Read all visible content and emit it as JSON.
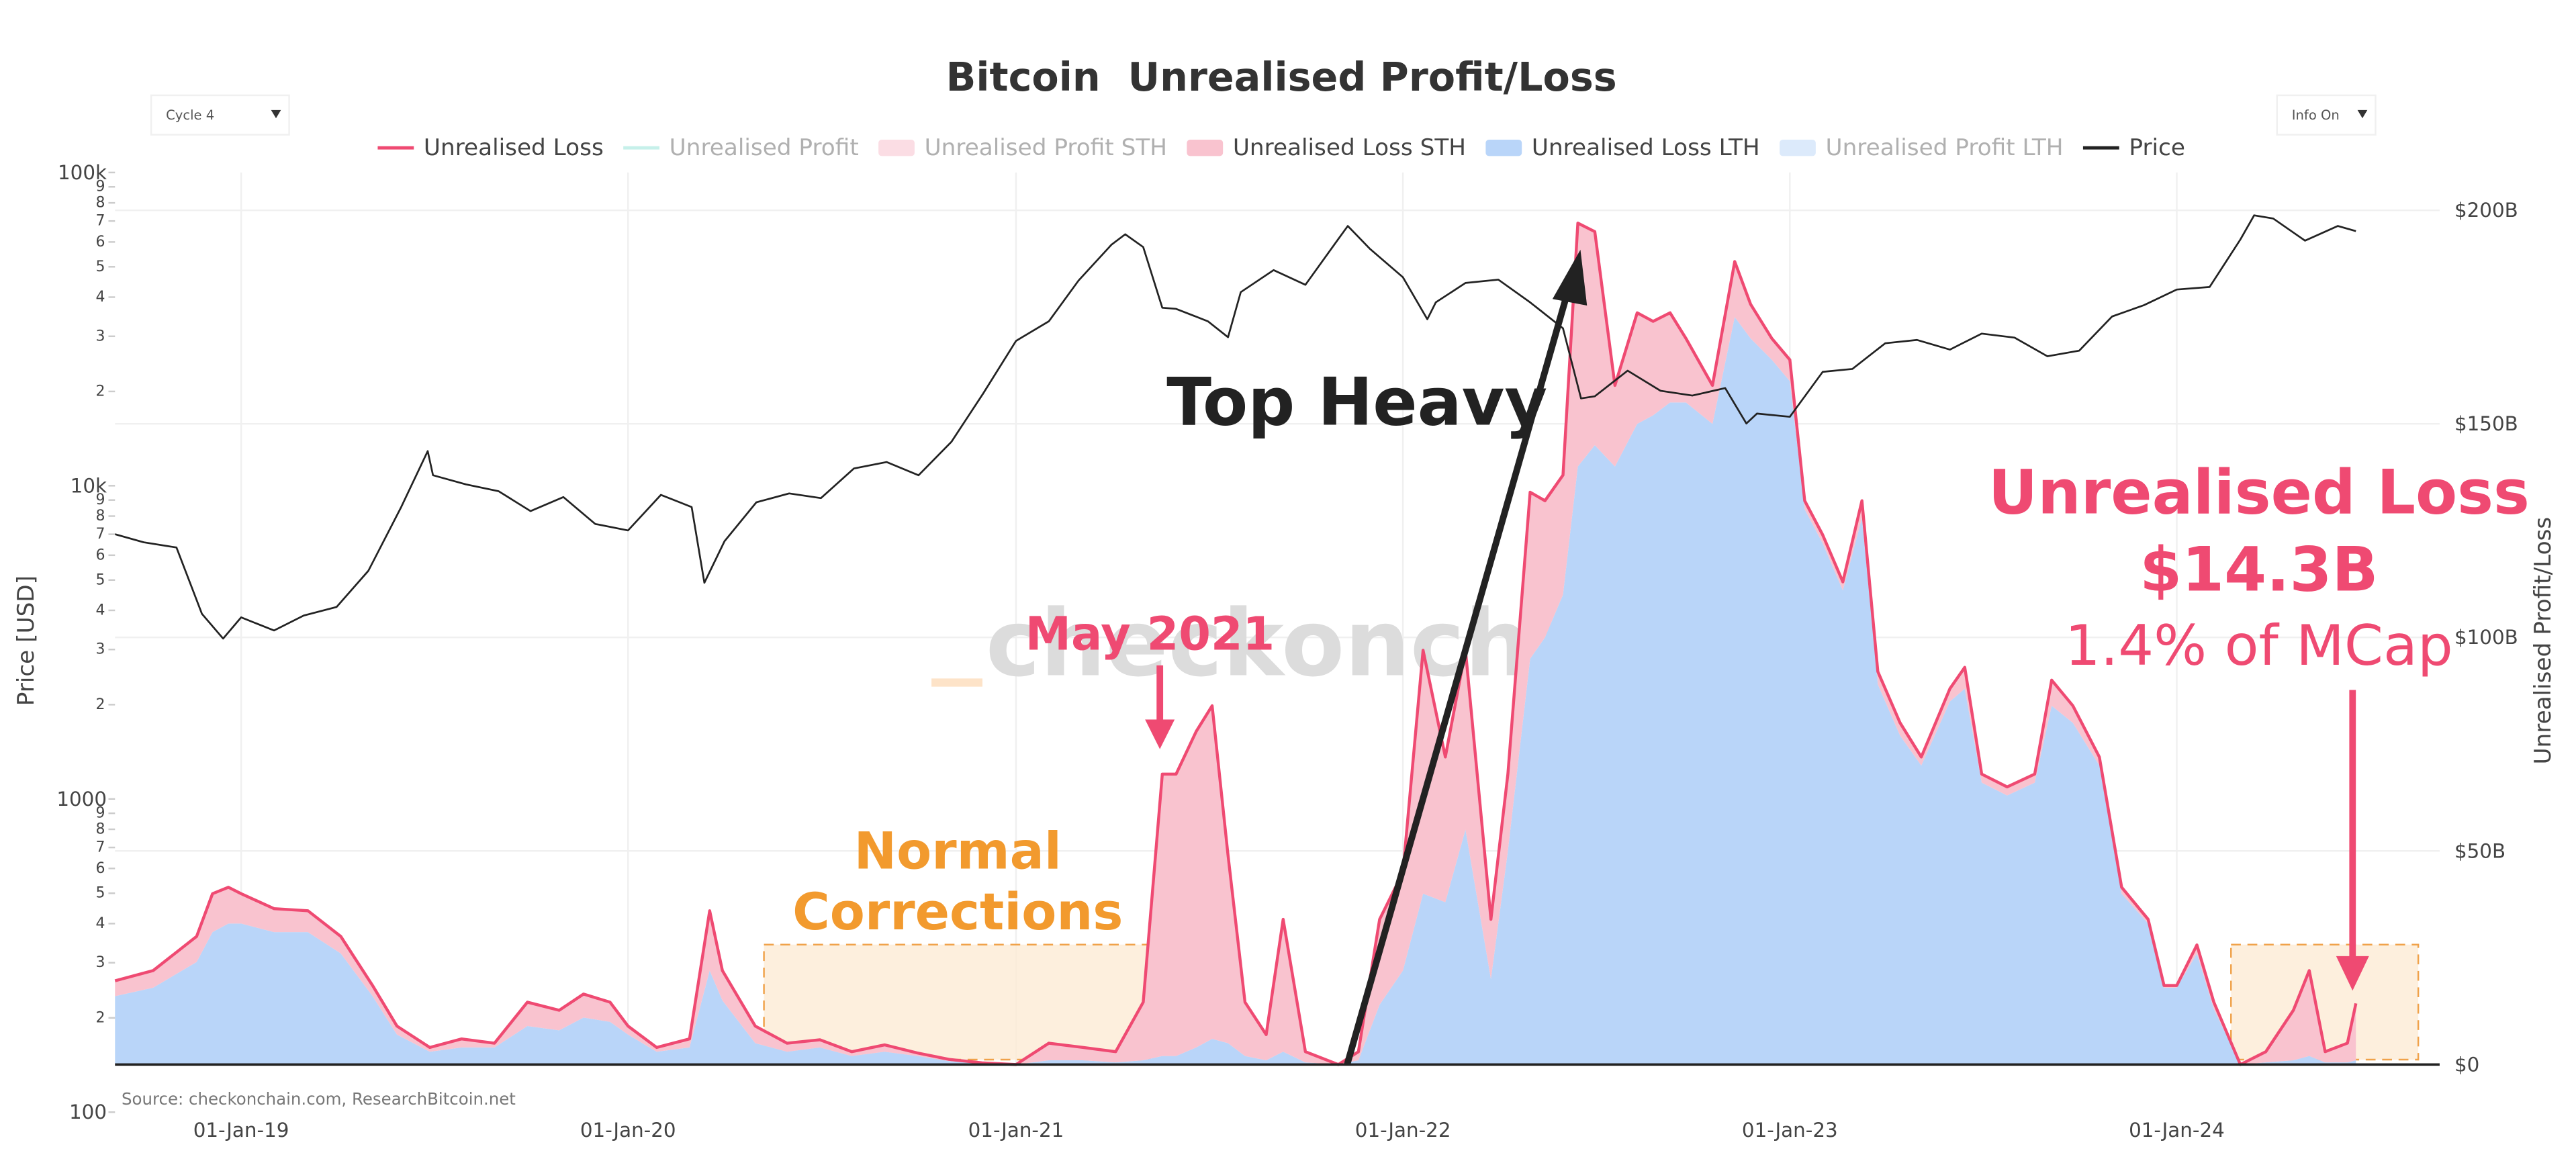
{
  "chart_data": {
    "type": "area",
    "title": "Bitcoin  Unrealised Profit/Loss",
    "controls": {
      "cycle": "Cycle 4",
      "info": "Info On"
    },
    "ylabel": "Price [USD]",
    "y2label": "Unrealised Profit/Loss",
    "source": "Source: checkonchain.com, ResearchBitcoin.net",
    "watermark": "checkonchain",
    "annotations": {
      "top_heavy": "Top Heavy",
      "may_2021": "May 2021",
      "normal_corrections": [
        "Normal",
        "Corrections"
      ],
      "loss_title": "Unrealised Loss",
      "loss_value": "$14.3B",
      "loss_share": "1.4% of MCap"
    },
    "log_y": true,
    "grid": true,
    "legend": "top",
    "xlim": [
      "2018-09-04",
      "2024-09-05"
    ],
    "xticks": [
      {
        "value": "2019-01-01",
        "label": "01-Jan-19"
      },
      {
        "value": "2020-01-01",
        "label": "01-Jan-20"
      },
      {
        "value": "2021-01-01",
        "label": "01-Jan-21"
      },
      {
        "value": "2022-01-01",
        "label": "01-Jan-22"
      },
      {
        "value": "2023-01-01",
        "label": "01-Jan-23"
      },
      {
        "value": "2024-01-01",
        "label": "01-Jan-24"
      }
    ],
    "ylim": [
      100,
      100000
    ],
    "yticks": [
      100,
      {
        "value": 200,
        "label": "2"
      },
      {
        "value": 300,
        "label": "3"
      },
      {
        "value": 400,
        "label": "4"
      },
      {
        "value": 500,
        "label": "5"
      },
      {
        "value": 600,
        "label": "6"
      },
      {
        "value": 700,
        "label": "7"
      },
      {
        "value": 800,
        "label": "8"
      },
      {
        "value": 900,
        "label": "9"
      },
      1000,
      {
        "value": 2000,
        "label": "2"
      },
      {
        "value": 3000,
        "label": "3"
      },
      {
        "value": 4000,
        "label": "4"
      },
      {
        "value": 5000,
        "label": "5"
      },
      {
        "value": 6000,
        "label": "6"
      },
      {
        "value": 7000,
        "label": "7"
      },
      {
        "value": 8000,
        "label": "8"
      },
      {
        "value": 9000,
        "label": "9"
      },
      {
        "value": 10000,
        "label": "10k"
      },
      {
        "value": 20000,
        "label": "2"
      },
      {
        "value": 30000,
        "label": "3"
      },
      {
        "value": 40000,
        "label": "4"
      },
      {
        "value": 50000,
        "label": "5"
      },
      {
        "value": 60000,
        "label": "6"
      },
      {
        "value": 70000,
        "label": "7"
      },
      {
        "value": 80000,
        "label": "8"
      },
      {
        "value": 90000,
        "label": "9"
      },
      {
        "value": 100000,
        "label": "100k"
      }
    ],
    "y2lim": [
      0,
      200
    ],
    "y2ticks": [
      {
        "value": 0,
        "label": "$0"
      },
      {
        "value": 50,
        "label": "$50B"
      },
      {
        "value": 100,
        "label": "$100B"
      },
      {
        "value": 150,
        "label": "$150B"
      },
      {
        "value": 200,
        "label": "$200B"
      }
    ],
    "x": [
      "2018-09-04",
      "2018-10-10",
      "2018-11-20",
      "2018-12-05",
      "2018-12-20",
      "2019-01-01",
      "2019-02-01",
      "2019-03-05",
      "2019-04-05",
      "2019-05-05",
      "2019-05-28",
      "2019-06-28",
      "2019-07-28",
      "2019-08-28",
      "2019-09-28",
      "2019-10-28",
      "2019-11-20",
      "2019-12-15",
      "2020-01-01",
      "2020-01-28",
      "2020-02-28",
      "2020-03-18",
      "2020-03-30",
      "2020-04-30",
      "2020-05-30",
      "2020-06-30",
      "2020-07-30",
      "2020-08-30",
      "2020-09-30",
      "2020-10-30",
      "2020-11-30",
      "2021-01-01",
      "2021-02-01",
      "2021-03-05",
      "2021-04-05",
      "2021-05-01",
      "2021-05-19",
      "2021-06-01",
      "2021-06-20",
      "2021-07-05",
      "2021-07-20",
      "2021-08-05",
      "2021-08-25",
      "2021-09-10",
      "2021-10-01",
      "2021-11-01",
      "2021-11-20",
      "2021-12-10",
      "2022-01-01",
      "2022-01-20",
      "2022-02-10",
      "2022-03-01",
      "2022-03-25",
      "2022-04-10",
      "2022-05-01",
      "2022-05-15",
      "2022-06-01",
      "2022-06-15",
      "2022-07-01",
      "2022-07-20",
      "2022-08-10",
      "2022-08-25",
      "2022-09-10",
      "2022-09-25",
      "2022-10-20",
      "2022-11-10",
      "2022-11-25",
      "2022-12-15",
      "2023-01-01",
      "2023-01-15",
      "2023-02-01",
      "2023-02-20",
      "2023-03-10",
      "2023-03-25",
      "2023-04-15",
      "2023-05-05",
      "2023-06-01",
      "2023-06-15",
      "2023-07-01",
      "2023-07-25",
      "2023-08-20",
      "2023-09-05",
      "2023-09-25",
      "2023-10-20",
      "2023-11-10",
      "2023-12-05",
      "2023-12-20",
      "2024-01-01",
      "2024-01-20",
      "2024-02-05",
      "2024-03-01",
      "2024-03-25",
      "2024-04-20",
      "2024-05-05",
      "2024-05-20",
      "2024-06-10",
      "2024-06-18"
    ],
    "series": [
      {
        "name": "Unrealised Loss",
        "color": "#ef4a72",
        "kind": "line",
        "axis": "y2",
        "values": [
          19.6,
          22,
          30,
          40,
          41.5,
          40,
          36.5,
          36,
          30,
          18.5,
          9,
          4,
          6,
          5,
          14.6,
          12.7,
          16.5,
          14.6,
          9,
          4,
          6,
          36,
          22,
          9,
          5,
          5.8,
          3,
          4.6,
          2.7,
          1.2,
          0.4,
          0,
          5,
          4,
          3,
          14.6,
          68,
          68,
          78,
          84,
          49,
          14.6,
          7,
          34,
          3,
          0,
          3,
          34,
          45,
          97,
          72,
          97,
          34,
          68,
          134,
          132,
          138,
          197,
          195,
          159,
          176,
          174,
          176,
          170,
          159,
          188,
          178,
          170,
          165,
          132,
          124,
          113,
          132,
          92,
          80,
          72,
          88,
          93,
          68,
          65,
          68,
          90,
          84,
          72,
          41.5,
          34,
          18.5,
          18.5,
          28,
          14.6,
          0,
          3,
          12.7,
          22,
          3,
          5,
          14.3
        ]
      },
      {
        "name": "Unrealised Profit",
        "color": "#8fe3d6",
        "kind": "line",
        "visible": false
      },
      {
        "name": "Unrealised Profit STH",
        "color": "#f9c6d2",
        "kind": "area",
        "visible": false
      },
      {
        "name": "Unrealised Loss STH",
        "color": "#f9c3cf",
        "kind": "area",
        "axis": "y2",
        "stack_level": 1,
        "values": [
          3.6,
          4,
          6,
          9,
          8.5,
          7,
          5.5,
          5,
          4,
          2.5,
          2,
          1,
          2,
          1,
          5.6,
          4.7,
          5.5,
          4.6,
          2,
          1,
          2,
          14,
          7,
          4,
          2,
          1.8,
          1,
          1.6,
          0.7,
          0.4,
          0.2,
          0,
          4,
          3,
          2.5,
          13.6,
          66,
          66,
          74,
          78,
          44,
          12.6,
          6,
          31,
          2.5,
          0,
          2,
          20,
          23,
          57,
          34,
          42,
          14,
          18,
          39,
          32,
          28,
          57,
          50,
          19,
          26,
          22,
          21,
          15,
          9,
          13,
          8,
          5,
          5,
          2,
          2,
          2,
          4,
          3,
          3,
          2,
          3,
          5,
          2,
          2,
          2,
          6,
          4,
          2,
          1.5,
          1,
          0.5,
          0.5,
          2,
          1.6,
          0,
          2.5,
          11.7,
          20,
          2.5,
          4.5,
          13.3
        ]
      },
      {
        "name": "Unrealised Loss LTH",
        "color": "#b9d5f9",
        "kind": "area",
        "axis": "y2",
        "stack_level": 0,
        "values": [
          16,
          18,
          24,
          31,
          33,
          33,
          31,
          31,
          26,
          16,
          7,
          3,
          4,
          4,
          9,
          8,
          11,
          10,
          7,
          3,
          4,
          22,
          15,
          5,
          3,
          4,
          2,
          3,
          2,
          0.8,
          0.2,
          0,
          1,
          1,
          0.5,
          1,
          2,
          2,
          4,
          6,
          5,
          2,
          1,
          3,
          0.5,
          0,
          1,
          14,
          22,
          40,
          38,
          55,
          20,
          50,
          95,
          100,
          110,
          140,
          145,
          140,
          150,
          152,
          155,
          155,
          150,
          175,
          170,
          165,
          160,
          130,
          122,
          111,
          128,
          89,
          77,
          70,
          85,
          88,
          66,
          63,
          66,
          84,
          80,
          70,
          40,
          33,
          18,
          18,
          26,
          13,
          0,
          0.5,
          1,
          2,
          0.5,
          0.5,
          1
        ]
      },
      {
        "name": "Unrealised Profit LTH",
        "color": "#c5dcf9",
        "kind": "area",
        "visible": false
      },
      {
        "name": "Price",
        "color": "#222222",
        "kind": "line",
        "axis": "y",
        "x": [
          "2018-09-04",
          "2018-10-01",
          "2018-11-01",
          "2018-11-25",
          "2018-12-15",
          "2019-01-01",
          "2019-02-01",
          "2019-03-01",
          "2019-04-01",
          "2019-05-01",
          "2019-06-01",
          "2019-06-26",
          "2019-07-01",
          "2019-08-01",
          "2019-09-01",
          "2019-10-01",
          "2019-11-01",
          "2019-12-01",
          "2020-01-01",
          "2020-02-01",
          "2020-03-01",
          "2020-03-13",
          "2020-04-01",
          "2020-05-01",
          "2020-06-01",
          "2020-07-01",
          "2020-08-01",
          "2020-09-01",
          "2020-10-01",
          "2020-11-01",
          "2020-12-01",
          "2021-01-01",
          "2021-02-01",
          "2021-03-01",
          "2021-04-01",
          "2021-04-14",
          "2021-05-01",
          "2021-05-19",
          "2021-06-01",
          "2021-07-01",
          "2021-07-20",
          "2021-08-01",
          "2021-09-01",
          "2021-10-01",
          "2021-11-01",
          "2021-11-10",
          "2021-12-01",
          "2022-01-01",
          "2022-01-24",
          "2022-02-01",
          "2022-03-01",
          "2022-04-01",
          "2022-05-01",
          "2022-06-01",
          "2022-06-18",
          "2022-07-01",
          "2022-08-01",
          "2022-09-01",
          "2022-10-01",
          "2022-11-01",
          "2022-11-21",
          "2022-12-01",
          "2023-01-01",
          "2023-02-01",
          "2023-03-01",
          "2023-04-01",
          "2023-05-01",
          "2023-06-01",
          "2023-07-01",
          "2023-08-01",
          "2023-09-01",
          "2023-10-01",
          "2023-11-01",
          "2023-12-01",
          "2024-01-01",
          "2024-02-01",
          "2024-03-01",
          "2024-03-14",
          "2024-04-01",
          "2024-05-01",
          "2024-06-01",
          "2024-06-18"
        ],
        "values": [
          7000,
          6600,
          6350,
          3900,
          3250,
          3800,
          3450,
          3850,
          4100,
          5350,
          8550,
          12900,
          10800,
          10100,
          9600,
          8300,
          9200,
          7550,
          7200,
          9350,
          8550,
          4900,
          6650,
          8850,
          9450,
          9130,
          11350,
          11900,
          10800,
          13800,
          19700,
          29000,
          33500,
          45200,
          58800,
          63500,
          57800,
          37000,
          36700,
          33500,
          29800,
          41500,
          48800,
          43800,
          61300,
          67500,
          57000,
          46300,
          34000,
          38500,
          44400,
          45500,
          38500,
          31800,
          19000,
          19300,
          23300,
          20100,
          19400,
          20500,
          15800,
          17000,
          16600,
          23100,
          23600,
          28500,
          29200,
          27200,
          30600,
          29700,
          25900,
          27000,
          34700,
          37700,
          42300,
          43100,
          61100,
          73000,
          71300,
          60600,
          67500,
          65000
        ]
      }
    ]
  }
}
